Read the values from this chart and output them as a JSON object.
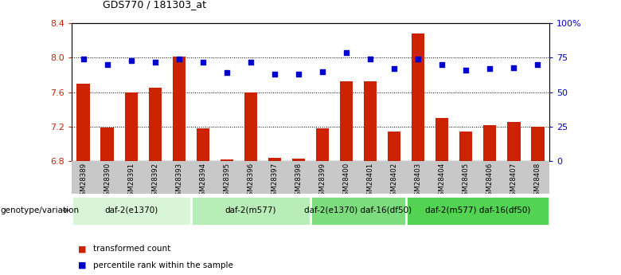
{
  "title": "GDS770 / 181303_at",
  "samples": [
    "GSM28389",
    "GSM28390",
    "GSM28391",
    "GSM28392",
    "GSM28393",
    "GSM28394",
    "GSM28395",
    "GSM28396",
    "GSM28397",
    "GSM28398",
    "GSM28399",
    "GSM28400",
    "GSM28401",
    "GSM28402",
    "GSM28403",
    "GSM28404",
    "GSM28405",
    "GSM28406",
    "GSM28407",
    "GSM28408"
  ],
  "bar_values": [
    7.7,
    7.19,
    7.6,
    7.65,
    8.01,
    7.18,
    6.82,
    7.6,
    6.84,
    6.83,
    7.18,
    7.73,
    7.73,
    7.14,
    8.28,
    7.3,
    7.14,
    7.22,
    7.25,
    7.2
  ],
  "dot_values": [
    74,
    70,
    73,
    72,
    74,
    72,
    64,
    72,
    63,
    63,
    65,
    79,
    74,
    67,
    74,
    70,
    66,
    67,
    68,
    70
  ],
  "ylim_left": [
    6.8,
    8.4
  ],
  "ylim_right": [
    0,
    100
  ],
  "yticks_left": [
    6.8,
    7.2,
    7.6,
    8.0,
    8.4
  ],
  "yticks_right": [
    0,
    25,
    50,
    75,
    100
  ],
  "ytick_right_labels": [
    "0",
    "25",
    "50",
    "75",
    "100%"
  ],
  "groups": [
    {
      "label": "daf-2(e1370)",
      "start": 0,
      "end": 5,
      "color": "#d8f5d8"
    },
    {
      "label": "daf-2(m577)",
      "start": 5,
      "end": 10,
      "color": "#b8edb8"
    },
    {
      "label": "daf-2(e1370) daf-16(df50)",
      "start": 10,
      "end": 14,
      "color": "#7ddc7d"
    },
    {
      "label": "daf-2(m577) daf-16(df50)",
      "start": 14,
      "end": 20,
      "color": "#52d452"
    }
  ],
  "bar_color": "#cc2200",
  "dot_color": "#0000cc",
  "bar_bottom": 6.8,
  "label_bg_color": "#c8c8c8",
  "legend_red_label": "transformed count",
  "legend_blue_label": "percentile rank within the sample",
  "genotype_label": "genotype/variation"
}
